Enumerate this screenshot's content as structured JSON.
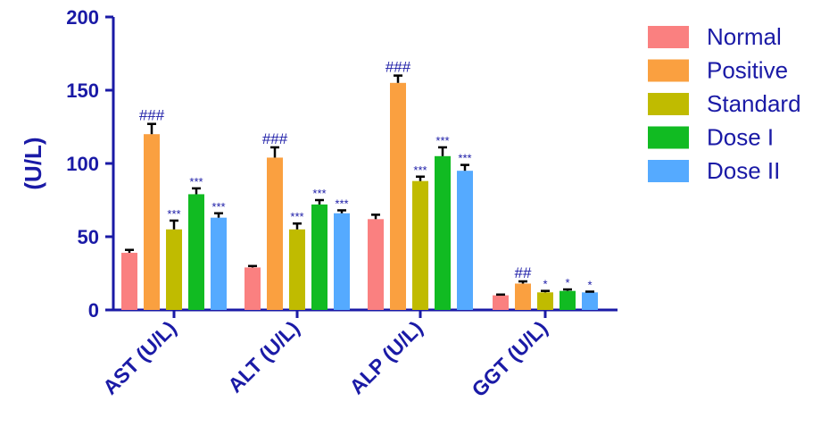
{
  "chart_data": {
    "type": "bar",
    "ylabel": "(U/L)",
    "ylim": [
      0,
      200
    ],
    "yticks": [
      "0",
      "50",
      "100",
      "150",
      "200"
    ],
    "categories": [
      "AST (U/L)",
      "ALT (U/L)",
      "ALP (U/L)",
      "GGT (U/L)"
    ],
    "legend_position": "right",
    "grid": false,
    "series": [
      {
        "name": "Normal",
        "color": "#fa8080",
        "values": [
          39,
          29,
          62,
          10
        ],
        "errors": [
          2,
          1,
          3,
          0.5
        ],
        "labels": [
          "",
          "",
          "",
          ""
        ]
      },
      {
        "name": "Positive",
        "color": "#faa040",
        "values": [
          120,
          104,
          155,
          18
        ],
        "errors": [
          7,
          7,
          5,
          1.5
        ],
        "labels": [
          "###",
          "###",
          "###",
          "##"
        ]
      },
      {
        "name": "Standard",
        "color": "#c0bb00",
        "values": [
          55,
          55,
          88,
          12
        ],
        "errors": [
          6,
          4,
          3,
          1
        ],
        "labels": [
          "***",
          "***",
          "***",
          "*"
        ]
      },
      {
        "name": "Dose I",
        "color": "#11bb22",
        "values": [
          79,
          72,
          105,
          13
        ],
        "errors": [
          4,
          3,
          6,
          1
        ],
        "labels": [
          "***",
          "***",
          "***",
          "*"
        ]
      },
      {
        "name": "Dose II",
        "color": "#55aaff",
        "values": [
          63,
          66,
          95,
          12
        ],
        "errors": [
          3,
          2,
          4,
          0.5
        ],
        "labels": [
          "***",
          "***",
          "***",
          "*"
        ]
      }
    ]
  }
}
